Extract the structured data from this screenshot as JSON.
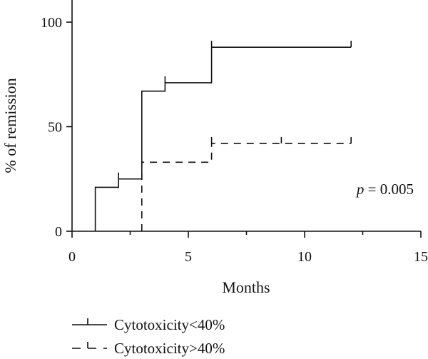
{
  "chart_data": {
    "type": "line",
    "style": "step",
    "title": "",
    "xlabel": "Months",
    "ylabel": "% of remission",
    "xlim": [
      0,
      15
    ],
    "ylim": [
      0,
      100
    ],
    "xticks": [
      0,
      5,
      10,
      15
    ],
    "yticks": [
      0,
      50,
      100
    ],
    "grid": false,
    "annotation": {
      "italic": "p",
      "text": " = 0.005"
    },
    "legend_position": "bottom-left",
    "series": [
      {
        "name": "Cytotoxicity<40%",
        "line": "solid",
        "color": "#111111",
        "x": [
          1,
          2,
          3,
          4,
          6,
          12
        ],
        "y": [
          21,
          25,
          67,
          71,
          88,
          88
        ],
        "censor_x": [
          2,
          4,
          6,
          12
        ]
      },
      {
        "name": "Cytotoxicity>40%",
        "line": "dashed",
        "color": "#111111",
        "x": [
          3,
          6,
          12
        ],
        "y": [
          33,
          42,
          42
        ],
        "censor_x": [
          6,
          9,
          12
        ]
      }
    ]
  }
}
